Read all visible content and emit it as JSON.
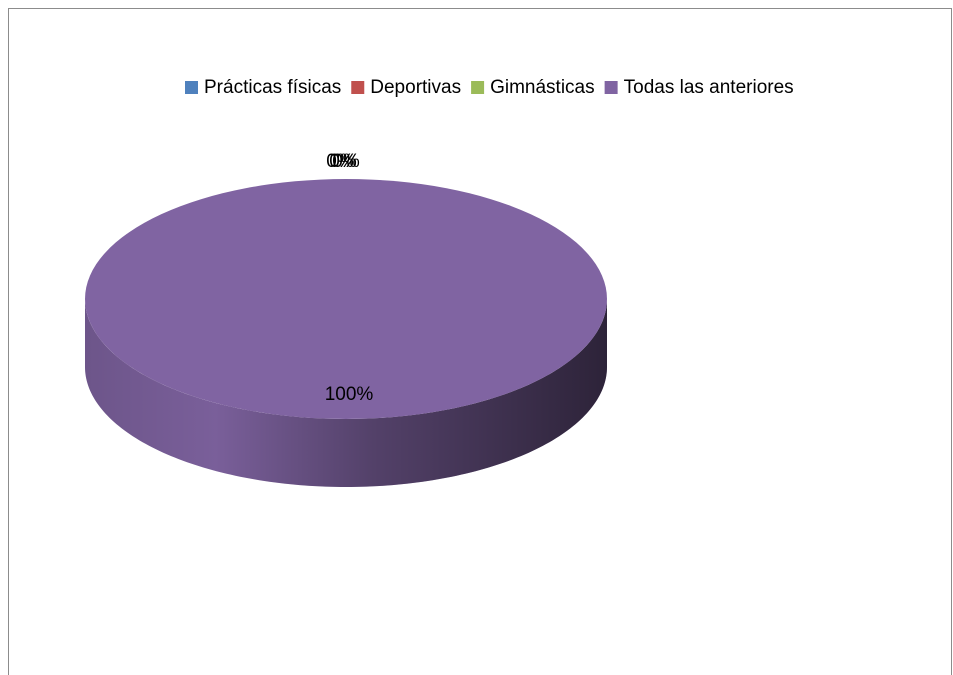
{
  "chart_data": {
    "type": "pie",
    "categories": [
      "Prácticas físicas",
      "Deportivas",
      "Gimnásticas",
      "Todas las anteriores"
    ],
    "values": [
      0,
      0,
      0,
      100
    ],
    "value_labels": [
      "0%",
      "0%",
      "0%",
      "100%"
    ],
    "colors": [
      "#4f81bd",
      "#c0504d",
      "#9bbb59",
      "#8064a2"
    ],
    "legend": "top"
  }
}
